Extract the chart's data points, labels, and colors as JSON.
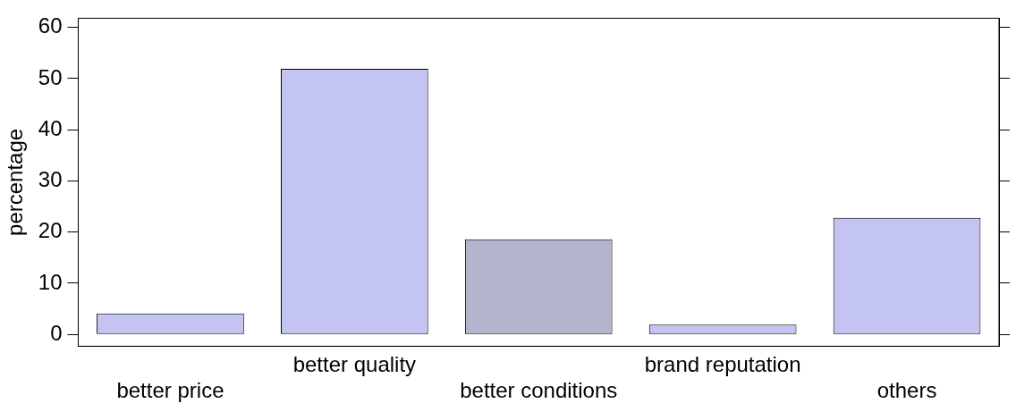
{
  "chart_data": {
    "type": "bar",
    "ylabel": "percentage",
    "categories": [
      "better price",
      "better quality",
      "better conditions",
      "brand reputation",
      "others"
    ],
    "values": [
      4.1,
      51.9,
      18.6,
      1.9,
      22.8
    ],
    "colors": [
      "#c4c4f2",
      "#c4c4f2",
      "#b4b4cc",
      "#c4c4f2",
      "#c4c4f2"
    ],
    "ylim": [
      -2.3,
      61.8
    ],
    "yticks": [
      0,
      10,
      20,
      30,
      40,
      50,
      60
    ],
    "grid": false,
    "legend": false
  }
}
